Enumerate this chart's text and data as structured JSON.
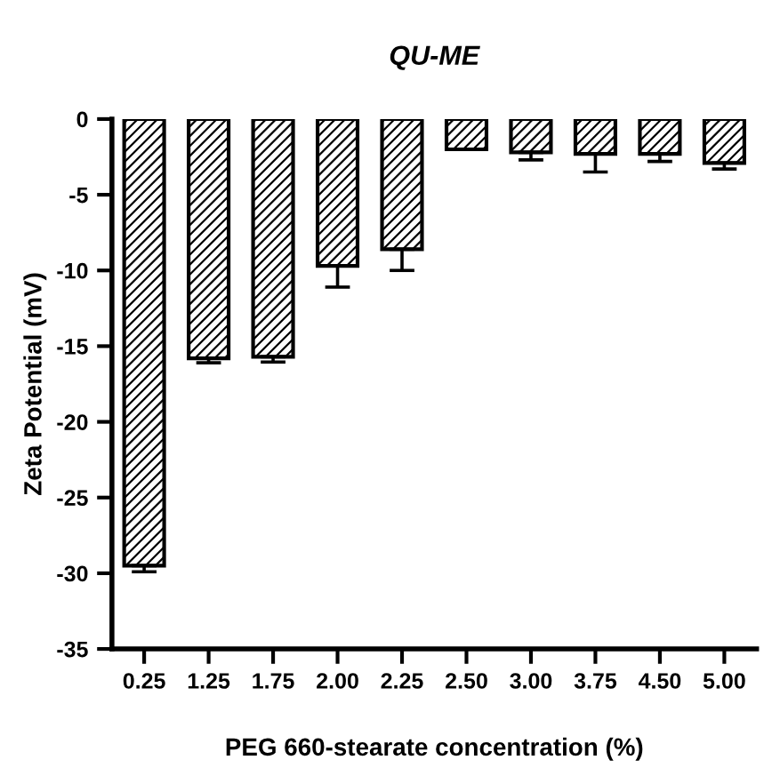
{
  "chart_data": {
    "type": "bar",
    "title": "QU-ME",
    "xlabel": "PEG 660-stearate concentration (%)",
    "ylabel": "Zeta Potential (mV)",
    "categories": [
      "0.25",
      "1.25",
      "1.75",
      "2.00",
      "2.25",
      "2.50",
      "3.00",
      "3.75",
      "4.50",
      "5.00"
    ],
    "values": [
      -29.5,
      -15.8,
      -15.7,
      -9.7,
      -8.6,
      -2.0,
      -2.2,
      -2.3,
      -2.3,
      -2.9
    ],
    "errors": [
      [
        -29.9,
        -29.5
      ],
      [
        -16.1,
        -15.8
      ],
      [
        -16.05,
        -15.7
      ],
      [
        -11.1,
        -9.7
      ],
      [
        -10.0,
        -8.6
      ],
      null,
      [
        -2.7,
        -2.2
      ],
      [
        -3.5,
        -2.3
      ],
      [
        -2.8,
        -2.3
      ],
      [
        -3.3,
        -2.9
      ]
    ],
    "color": "#000000",
    "ylim": [
      -35,
      0
    ],
    "yticks": [
      -35,
      -30,
      -25,
      -20,
      -15,
      -10,
      -5,
      0
    ],
    "grid": false,
    "legend": false
  }
}
